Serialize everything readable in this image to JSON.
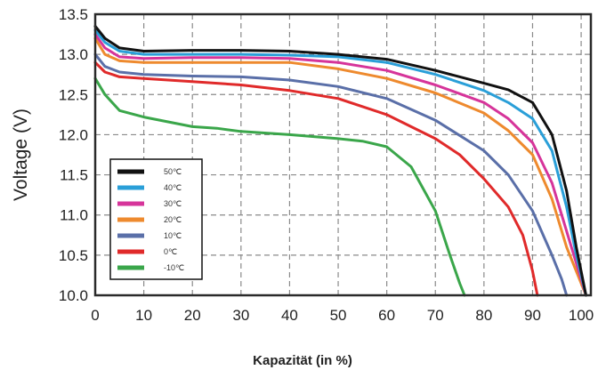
{
  "chart_data": {
    "type": "line",
    "xlabel": "Kapazität (in %)",
    "ylabel": "Voltage (V)",
    "xlim": [
      0,
      102
    ],
    "ylim": [
      10.0,
      13.5
    ],
    "x_ticks": [
      "0",
      "10",
      "20",
      "30",
      "40",
      "50",
      "60",
      "70",
      "80",
      "90",
      "100"
    ],
    "y_ticks": [
      "10.0",
      "10.5",
      "11.0",
      "11.5",
      "12.0",
      "12.5",
      "13.0",
      "13.5"
    ],
    "grid": true,
    "legend_position": "lower-left",
    "series": [
      {
        "name": "50℃",
        "color": "#111111",
        "points": [
          [
            0,
            13.35
          ],
          [
            2,
            13.2
          ],
          [
            5,
            13.08
          ],
          [
            10,
            13.04
          ],
          [
            20,
            13.05
          ],
          [
            30,
            13.05
          ],
          [
            40,
            13.04
          ],
          [
            50,
            13.0
          ],
          [
            60,
            12.94
          ],
          [
            70,
            12.8
          ],
          [
            80,
            12.64
          ],
          [
            85,
            12.56
          ],
          [
            90,
            12.4
          ],
          [
            94,
            12.0
          ],
          [
            97,
            11.3
          ],
          [
            99,
            10.6
          ],
          [
            101,
            10.0
          ]
        ]
      },
      {
        "name": "40℃",
        "color": "#2a9fd8",
        "points": [
          [
            0,
            13.3
          ],
          [
            2,
            13.15
          ],
          [
            5,
            13.04
          ],
          [
            10,
            13.0
          ],
          [
            20,
            13.0
          ],
          [
            30,
            13.0
          ],
          [
            40,
            12.99
          ],
          [
            50,
            12.97
          ],
          [
            60,
            12.9
          ],
          [
            70,
            12.75
          ],
          [
            80,
            12.55
          ],
          [
            85,
            12.4
          ],
          [
            90,
            12.2
          ],
          [
            94,
            11.8
          ],
          [
            97,
            11.1
          ],
          [
            99,
            10.5
          ],
          [
            101,
            10.0
          ]
        ]
      },
      {
        "name": "30℃",
        "color": "#d6349a",
        "points": [
          [
            0,
            13.25
          ],
          [
            2,
            13.08
          ],
          [
            5,
            12.97
          ],
          [
            10,
            12.95
          ],
          [
            20,
            12.96
          ],
          [
            30,
            12.96
          ],
          [
            40,
            12.95
          ],
          [
            50,
            12.9
          ],
          [
            60,
            12.8
          ],
          [
            70,
            12.62
          ],
          [
            80,
            12.4
          ],
          [
            85,
            12.2
          ],
          [
            90,
            11.9
          ],
          [
            94,
            11.4
          ],
          [
            97,
            10.8
          ],
          [
            99,
            10.4
          ],
          [
            101,
            10.0
          ]
        ]
      },
      {
        "name": "20℃",
        "color": "#ee8a2e",
        "points": [
          [
            0,
            13.2
          ],
          [
            2,
            13.0
          ],
          [
            5,
            12.92
          ],
          [
            10,
            12.9
          ],
          [
            20,
            12.9
          ],
          [
            30,
            12.9
          ],
          [
            40,
            12.9
          ],
          [
            50,
            12.82
          ],
          [
            60,
            12.7
          ],
          [
            70,
            12.52
          ],
          [
            80,
            12.27
          ],
          [
            85,
            12.05
          ],
          [
            90,
            11.75
          ],
          [
            94,
            11.2
          ],
          [
            97,
            10.6
          ],
          [
            99,
            10.3
          ],
          [
            101,
            10.0
          ]
        ]
      },
      {
        "name": "10℃",
        "color": "#5a6fa8",
        "points": [
          [
            0,
            13.0
          ],
          [
            2,
            12.85
          ],
          [
            5,
            12.78
          ],
          [
            10,
            12.75
          ],
          [
            20,
            12.73
          ],
          [
            30,
            12.72
          ],
          [
            40,
            12.68
          ],
          [
            50,
            12.6
          ],
          [
            60,
            12.45
          ],
          [
            70,
            12.18
          ],
          [
            80,
            11.8
          ],
          [
            85,
            11.5
          ],
          [
            90,
            11.05
          ],
          [
            94,
            10.5
          ],
          [
            96,
            10.2
          ],
          [
            97,
            10.0
          ]
        ]
      },
      {
        "name": "0℃",
        "color": "#e02a2a",
        "points": [
          [
            0,
            12.9
          ],
          [
            2,
            12.78
          ],
          [
            5,
            12.72
          ],
          [
            10,
            12.7
          ],
          [
            20,
            12.66
          ],
          [
            30,
            12.62
          ],
          [
            40,
            12.55
          ],
          [
            50,
            12.45
          ],
          [
            60,
            12.25
          ],
          [
            70,
            11.95
          ],
          [
            75,
            11.75
          ],
          [
            80,
            11.45
          ],
          [
            85,
            11.1
          ],
          [
            88,
            10.75
          ],
          [
            90,
            10.3
          ],
          [
            91,
            10.0
          ]
        ]
      },
      {
        "name": "-10℃",
        "color": "#3aa64a",
        "points": [
          [
            0,
            12.7
          ],
          [
            2,
            12.5
          ],
          [
            5,
            12.3
          ],
          [
            10,
            12.22
          ],
          [
            20,
            12.1
          ],
          [
            25,
            12.08
          ],
          [
            30,
            12.04
          ],
          [
            40,
            12.0
          ],
          [
            50,
            11.95
          ],
          [
            55,
            11.92
          ],
          [
            60,
            11.85
          ],
          [
            65,
            11.6
          ],
          [
            70,
            11.05
          ],
          [
            73,
            10.5
          ],
          [
            75,
            10.15
          ],
          [
            76,
            10.0
          ]
        ]
      }
    ]
  }
}
